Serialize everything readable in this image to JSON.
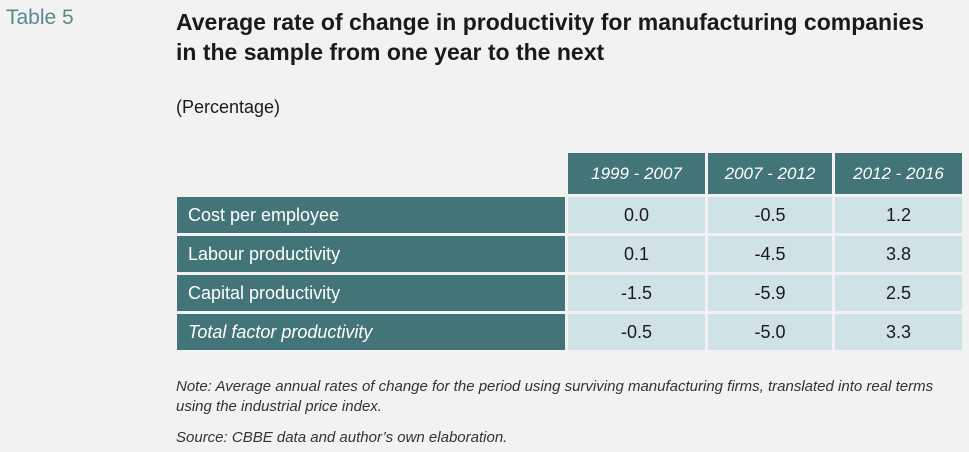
{
  "table_label": "Table 5",
  "title": "Average rate of change in productivity for manufacturing companies in the sample from one year to the next",
  "subtitle": "(Percentage)",
  "table": {
    "columns": [
      "1999 - 2007",
      "2007 - 2012",
      "2012 - 2016"
    ],
    "rows": [
      {
        "label": "Cost per employee",
        "italic": false,
        "values": [
          "0.0",
          "-0.5",
          "1.2"
        ]
      },
      {
        "label": "Labour productivity",
        "italic": false,
        "values": [
          "0.1",
          "-4.5",
          "3.8"
        ]
      },
      {
        "label": "Capital productivity",
        "italic": false,
        "values": [
          "-1.5",
          "-5.9",
          "2.5"
        ]
      },
      {
        "label": "Total factor productivity",
        "italic": true,
        "values": [
          "-0.5",
          "-5.0",
          "3.3"
        ]
      }
    ]
  },
  "note": "Note: Average annual rates of change for the period using surviving manufacturing firms, translated into real terms using the industrial price index.",
  "source": "Source: CBBE data and author’s own elaboration.",
  "colors": {
    "header_bg": "#437478",
    "cell_bg": "#cfe3e6",
    "label_color": "#5a8a8c"
  }
}
